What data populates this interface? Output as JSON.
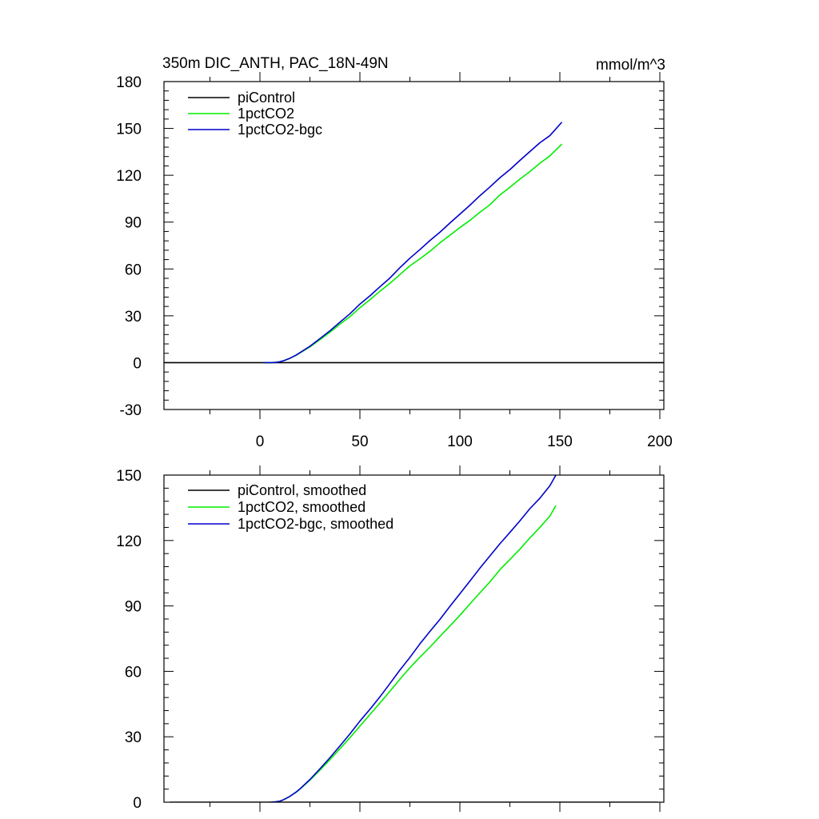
{
  "chart_data": [
    {
      "type": "line",
      "title": "350m DIC_ANTH, PAC_18N-49N",
      "units_label": "mmol/m^3",
      "xlim": [
        -48,
        202
      ],
      "ylim": [
        -30,
        180
      ],
      "xticks": [
        0,
        50,
        100,
        150,
        200
      ],
      "xtick_labels": [
        "0",
        "50",
        "100",
        "150",
        "200"
      ],
      "yticks": [
        -30,
        0,
        30,
        60,
        90,
        120,
        150,
        180
      ],
      "ytick_labels": [
        "-30",
        "0",
        "30",
        "60",
        "90",
        "120",
        "150",
        "180"
      ],
      "legend_position": "top-left",
      "series": [
        {
          "name": "piControl",
          "color": "#000000",
          "x": [
            -48,
            202
          ],
          "y": [
            0,
            0
          ]
        },
        {
          "name": "1pctCO2",
          "color": "#00ee00",
          "x": [
            2,
            5,
            8,
            10,
            12,
            15,
            18,
            20,
            25,
            30,
            35,
            40,
            45,
            50,
            55,
            60,
            65,
            70,
            75,
            80,
            85,
            90,
            95,
            100,
            105,
            110,
            115,
            120,
            125,
            130,
            135,
            140,
            145,
            151
          ],
          "y": [
            0,
            0,
            0.2,
            0.6,
            1.3,
            2.8,
            4.7,
            6.2,
            10.1,
            14.7,
            19.5,
            24.6,
            29.4,
            35.2,
            40.3,
            45.7,
            50.8,
            56.4,
            62.0,
            66.5,
            71.3,
            76.7,
            81.6,
            86.5,
            91.1,
            96.3,
            101.1,
            107.4,
            112.3,
            117.5,
            122.4,
            127.7,
            132.4,
            140.0
          ]
        },
        {
          "name": "1pctCO2-bgc",
          "color": "#0000cc",
          "x": [
            2,
            5,
            8,
            10,
            12,
            15,
            18,
            20,
            25,
            30,
            35,
            40,
            45,
            50,
            55,
            60,
            65,
            70,
            75,
            80,
            85,
            90,
            95,
            100,
            105,
            110,
            115,
            120,
            125,
            130,
            135,
            140,
            145,
            151
          ],
          "y": [
            0,
            0,
            0.2,
            0.6,
            1.3,
            2.8,
            4.8,
            6.4,
            10.5,
            15.4,
            20.4,
            25.9,
            31.3,
            37.5,
            42.8,
            48.6,
            54.2,
            60.8,
            66.9,
            72.4,
            78.2,
            83.5,
            89.4,
            95.1,
            100.8,
            106.9,
            112.5,
            118.4,
            123.6,
            129.5,
            135.2,
            140.8,
            145.4,
            154.0
          ]
        }
      ]
    },
    {
      "type": "line",
      "title": "",
      "xlim": [
        -48,
        202
      ],
      "ylim": [
        0,
        150
      ],
      "xticks": [
        0,
        50,
        100,
        150,
        200
      ],
      "yticks": [
        0,
        30,
        60,
        90,
        120,
        150
      ],
      "ytick_labels": [
        "0",
        "30",
        "60",
        "90",
        "120",
        "150"
      ],
      "legend_position": "top-left",
      "series": [
        {
          "name": "piControl, smoothed",
          "color": "#000000",
          "x": [
            -45,
            199
          ],
          "y": [
            0,
            0
          ]
        },
        {
          "name": "1pctCO2, smoothed",
          "color": "#00ee00",
          "x": [
            5,
            8,
            10,
            12,
            15,
            18,
            20,
            25,
            30,
            35,
            40,
            45,
            50,
            55,
            60,
            65,
            70,
            75,
            80,
            85,
            90,
            95,
            100,
            105,
            110,
            115,
            120,
            125,
            130,
            135,
            140,
            145,
            148
          ],
          "y": [
            0,
            0.2,
            0.5,
            1.2,
            2.7,
            4.5,
            6.0,
            10.1,
            14.7,
            19.5,
            24.5,
            29.6,
            34.9,
            40.2,
            45.5,
            50.9,
            56.4,
            61.7,
            66.5,
            71.1,
            76.0,
            80.8,
            85.7,
            90.9,
            96.0,
            101.0,
            106.6,
            111.3,
            116.0,
            121.2,
            126.0,
            131.2,
            136.0
          ]
        },
        {
          "name": "1pctCO2-bgc, smoothed",
          "color": "#0000cc",
          "x": [
            5,
            8,
            10,
            12,
            15,
            18,
            20,
            25,
            30,
            35,
            40,
            45,
            50,
            55,
            60,
            65,
            70,
            75,
            80,
            85,
            90,
            95,
            100,
            105,
            110,
            115,
            120,
            125,
            130,
            135,
            140,
            145,
            148
          ],
          "y": [
            0,
            0.2,
            0.5,
            1.2,
            2.7,
            4.6,
            6.1,
            10.4,
            15.3,
            20.4,
            25.8,
            31.3,
            37.2,
            42.6,
            48.3,
            54.4,
            60.6,
            66.4,
            72.6,
            78.3,
            83.8,
            89.8,
            95.6,
            101.4,
            107.3,
            112.9,
            118.5,
            123.7,
            129.0,
            134.6,
            139.4,
            145.1,
            150.0
          ]
        }
      ]
    }
  ]
}
